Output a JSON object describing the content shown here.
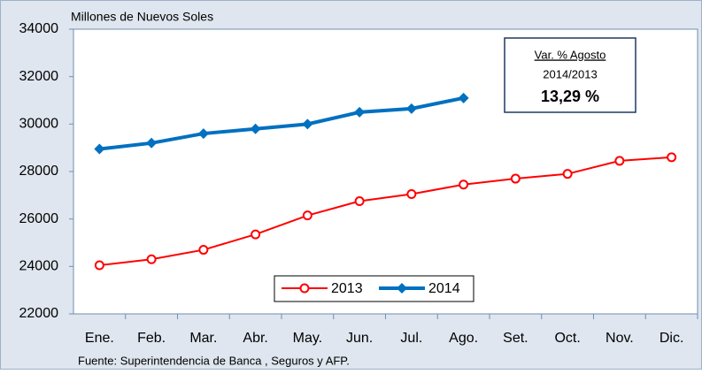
{
  "chart_data": {
    "type": "line",
    "y_axis_label": "Millones de Nuevos Soles",
    "source": "Fuente: Superintendencia de Banca , Seguros y AFP.",
    "categories": [
      "Ene.",
      "Feb.",
      "Mar.",
      "Abr.",
      "May.",
      "Jun.",
      "Jul.",
      "Ago.",
      "Set.",
      "Oct.",
      "Nov.",
      "Dic."
    ],
    "series": [
      {
        "name": "2013",
        "color": "#ff0000",
        "marker": "circle",
        "values": [
          24050,
          24300,
          24700,
          25350,
          26150,
          26750,
          27050,
          27450,
          27700,
          27900,
          28450,
          28600
        ]
      },
      {
        "name": "2014",
        "color": "#0070c0",
        "marker": "diamond",
        "values": [
          28950,
          29200,
          29600,
          29800,
          30000,
          30500,
          30650,
          31100,
          null,
          null,
          null,
          null
        ]
      }
    ],
    "ylim": [
      22000,
      34000
    ],
    "yticks": [
      22000,
      24000,
      26000,
      28000,
      30000,
      32000,
      34000
    ],
    "annotation": {
      "title": "Var. % Agosto",
      "period": "2014/2013",
      "value": "13,29 %"
    },
    "legend": "bottom"
  }
}
